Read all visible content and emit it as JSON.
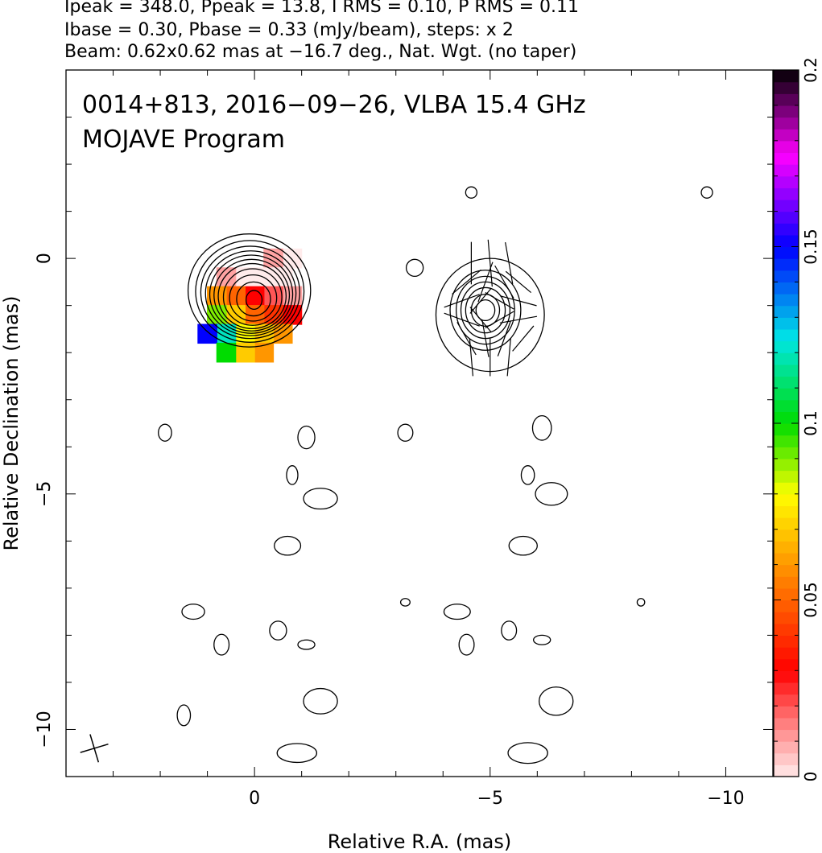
{
  "header": {
    "line1": "Ipeak = 348.0, Ppeak = 13.8, I RMS = 0.10, P RMS = 0.11",
    "line2": "Ibase = 0.30, Pbase = 0.33 (mJy/beam), steps: x 2",
    "line3": "Beam: 0.62x0.62 mas at −16.7 deg., Nat. Wgt. (no taper)"
  },
  "chart_data": {
    "type": "contour",
    "title": "0014+813, 2016−09−26, VLBA 15.4 GHz",
    "subtitle": "MOJAVE Program",
    "xlabel": "Relative R.A. (mas)",
    "ylabel": "Relative Declination (mas)",
    "xlim": [
      4.0,
      -11.0
    ],
    "ylim": [
      -11.0,
      4.0
    ],
    "x_ticks": [
      {
        "v": 0,
        "label": "0"
      },
      {
        "v": -5,
        "label": "−5"
      },
      {
        "v": -10,
        "label": "−10"
      }
    ],
    "y_ticks": [
      {
        "v": 0,
        "label": "0"
      },
      {
        "v": -5,
        "label": "−5"
      },
      {
        "v": -10,
        "label": "−10"
      }
    ],
    "colorbar": {
      "min": 0,
      "max": 0.2,
      "ticks": [
        {
          "v": 0,
          "label": "0"
        },
        {
          "v": 0.05,
          "label": "0.05"
        },
        {
          "v": 0.1,
          "label": "0.1"
        },
        {
          "v": 0.15,
          "label": "0.15"
        },
        {
          "v": 0.2,
          "label": "0.2"
        }
      ]
    },
    "beam": {
      "major_mas": 0.62,
      "minor_mas": 0.62,
      "pa_deg": -16.7
    },
    "total_intensity": {
      "center": [
        0.0,
        -0.9
      ],
      "contour_sizes_mas": [
        [
          1.3,
          1.2
        ],
        [
          1.15,
          1.08
        ],
        [
          1.05,
          0.98
        ],
        [
          0.96,
          0.9
        ],
        [
          0.88,
          0.83
        ],
        [
          0.8,
          0.76
        ],
        [
          0.72,
          0.69
        ],
        [
          0.62,
          0.6
        ],
        [
          0.5,
          0.49
        ],
        [
          0.36,
          0.36
        ],
        [
          0.17,
          0.2
        ]
      ]
    },
    "polarization_contours": {
      "center": [
        -5.0,
        -1.2
      ],
      "contour_sizes_mas": [
        [
          1.15,
          1.2
        ],
        [
          0.75,
          0.85
        ],
        [
          0.62,
          0.72
        ],
        [
          0.52,
          0.6
        ],
        [
          0.42,
          0.48
        ],
        [
          0.3,
          0.34
        ],
        [
          0.2,
          0.22
        ]
      ]
    },
    "fractional_polarization": {
      "center": [
        0.0,
        -0.8
      ],
      "cells": [
        {
          "x": -0.8,
          "y": 0.0,
          "v": 0.0
        },
        {
          "x": -0.4,
          "y": 0.0,
          "v": 0.01
        },
        {
          "x": -0.6,
          "y": -0.4,
          "v": 0.0
        },
        {
          "x": -0.2,
          "y": -0.4,
          "v": 0.0
        },
        {
          "x": 0.2,
          "y": -0.4,
          "v": 0.0
        },
        {
          "x": 0.6,
          "y": -0.4,
          "v": 0.01
        },
        {
          "x": -0.8,
          "y": -0.8,
          "v": 0.01
        },
        {
          "x": -0.4,
          "y": -0.8,
          "v": 0.02
        },
        {
          "x": 0.0,
          "y": -0.8,
          "v": 0.03
        },
        {
          "x": 0.4,
          "y": -0.8,
          "v": 0.05
        },
        {
          "x": 0.8,
          "y": -0.8,
          "v": 0.06
        },
        {
          "x": -0.8,
          "y": -1.2,
          "v": 0.03
        },
        {
          "x": -0.4,
          "y": -1.2,
          "v": 0.04
        },
        {
          "x": 0.0,
          "y": -1.2,
          "v": 0.05
        },
        {
          "x": 0.4,
          "y": -1.2,
          "v": 0.07
        },
        {
          "x": 0.8,
          "y": -1.2,
          "v": 0.09
        },
        {
          "x": -0.6,
          "y": -1.6,
          "v": 0.06
        },
        {
          "x": -0.2,
          "y": -1.6,
          "v": 0.07
        },
        {
          "x": 0.2,
          "y": -1.6,
          "v": 0.08
        },
        {
          "x": 0.6,
          "y": -1.6,
          "v": 0.12
        },
        {
          "x": 1.0,
          "y": -1.6,
          "v": 0.15
        },
        {
          "x": -0.2,
          "y": -2.0,
          "v": 0.06
        },
        {
          "x": 0.2,
          "y": -2.0,
          "v": 0.07
        },
        {
          "x": 0.6,
          "y": -2.0,
          "v": 0.1
        }
      ]
    },
    "evpa_vectors": {
      "center": [
        -5.0,
        -1.2
      ],
      "vectors": [
        {
          "x": -4.6,
          "y": -0.1,
          "len": 0.9,
          "angle_deg": 90
        },
        {
          "x": -5.0,
          "y": -0.1,
          "len": 1.0,
          "angle_deg": 95
        },
        {
          "x": -5.4,
          "y": -0.1,
          "len": 0.9,
          "angle_deg": 100
        },
        {
          "x": -4.5,
          "y": -0.5,
          "len": 0.8,
          "angle_deg": 40
        },
        {
          "x": -4.9,
          "y": -0.5,
          "len": 0.9,
          "angle_deg": 70
        },
        {
          "x": -5.3,
          "y": -0.5,
          "len": 0.8,
          "angle_deg": 120
        },
        {
          "x": -5.6,
          "y": -0.5,
          "len": 0.7,
          "angle_deg": 140
        },
        {
          "x": -4.4,
          "y": -0.9,
          "len": 0.8,
          "angle_deg": 20
        },
        {
          "x": -4.8,
          "y": -0.9,
          "len": 0.7,
          "angle_deg": 50
        },
        {
          "x": -5.2,
          "y": -0.9,
          "len": 0.7,
          "angle_deg": 150
        },
        {
          "x": -5.6,
          "y": -0.9,
          "len": 0.8,
          "angle_deg": 165
        },
        {
          "x": -4.4,
          "y": -1.3,
          "len": 0.8,
          "angle_deg": 160
        },
        {
          "x": -4.8,
          "y": -1.3,
          "len": 0.7,
          "angle_deg": 130
        },
        {
          "x": -5.2,
          "y": -1.3,
          "len": 0.7,
          "angle_deg": 30
        },
        {
          "x": -5.6,
          "y": -1.3,
          "len": 0.8,
          "angle_deg": 10
        },
        {
          "x": -4.5,
          "y": -1.7,
          "len": 0.8,
          "angle_deg": 120
        },
        {
          "x": -4.9,
          "y": -1.7,
          "len": 0.8,
          "angle_deg": 100
        },
        {
          "x": -5.3,
          "y": -1.7,
          "len": 0.8,
          "angle_deg": 70
        },
        {
          "x": -5.7,
          "y": -1.7,
          "len": 0.7,
          "angle_deg": 50
        },
        {
          "x": -4.6,
          "y": -2.1,
          "len": 0.8,
          "angle_deg": 95
        },
        {
          "x": -5.0,
          "y": -2.1,
          "len": 0.8,
          "angle_deg": 90
        },
        {
          "x": -5.4,
          "y": -2.1,
          "len": 0.8,
          "angle_deg": 85
        }
      ]
    },
    "noise_islands": [
      {
        "x": -3.4,
        "y": -0.2,
        "rx": 0.18,
        "ry": 0.18
      },
      {
        "x": 1.9,
        "y": -3.7,
        "rx": 0.14,
        "ry": 0.18
      },
      {
        "x": -1.1,
        "y": -3.8,
        "rx": 0.18,
        "ry": 0.24
      },
      {
        "x": -0.8,
        "y": -4.6,
        "rx": 0.12,
        "ry": 0.2
      },
      {
        "x": -1.4,
        "y": -5.1,
        "rx": 0.36,
        "ry": 0.22
      },
      {
        "x": -0.7,
        "y": -6.1,
        "rx": 0.28,
        "ry": 0.2
      },
      {
        "x": 1.3,
        "y": -7.5,
        "rx": 0.24,
        "ry": 0.16
      },
      {
        "x": -0.5,
        "y": -7.9,
        "rx": 0.18,
        "ry": 0.2
      },
      {
        "x": -1.1,
        "y": -8.2,
        "rx": 0.18,
        "ry": 0.1
      },
      {
        "x": 0.7,
        "y": -8.2,
        "rx": 0.16,
        "ry": 0.22
      },
      {
        "x": 1.5,
        "y": -9.7,
        "rx": 0.14,
        "ry": 0.22
      },
      {
        "x": -1.4,
        "y": -9.4,
        "rx": 0.36,
        "ry": 0.27
      },
      {
        "x": -0.9,
        "y": -10.5,
        "rx": 0.42,
        "ry": 0.2
      },
      {
        "x": -4.5,
        "y": -8.2,
        "rx": 0.16,
        "ry": 0.22
      },
      {
        "x": -4.3,
        "y": -7.5,
        "rx": 0.28,
        "ry": 0.16
      },
      {
        "x": -3.2,
        "y": -7.3,
        "rx": 0.1,
        "ry": 0.08
      },
      {
        "x": -3.2,
        "y": -3.7,
        "rx": 0.16,
        "ry": 0.18
      },
      {
        "x": -6.1,
        "y": -3.6,
        "rx": 0.2,
        "ry": 0.26
      },
      {
        "x": -5.8,
        "y": -4.6,
        "rx": 0.14,
        "ry": 0.2
      },
      {
        "x": -6.3,
        "y": -5.0,
        "rx": 0.34,
        "ry": 0.24
      },
      {
        "x": -5.7,
        "y": -6.1,
        "rx": 0.3,
        "ry": 0.2
      },
      {
        "x": -5.4,
        "y": -7.9,
        "rx": 0.16,
        "ry": 0.2
      },
      {
        "x": -6.1,
        "y": -8.1,
        "rx": 0.18,
        "ry": 0.1
      },
      {
        "x": -8.2,
        "y": -7.3,
        "rx": 0.08,
        "ry": 0.08
      },
      {
        "x": -6.4,
        "y": -9.4,
        "rx": 0.36,
        "ry": 0.3
      },
      {
        "x": -5.8,
        "y": -10.5,
        "rx": 0.42,
        "ry": 0.22
      },
      {
        "x": -4.6,
        "y": 1.4,
        "rx": 0.12,
        "ry": 0.12
      },
      {
        "x": -9.6,
        "y": 1.4,
        "rx": 0.12,
        "ry": 0.12
      }
    ]
  }
}
